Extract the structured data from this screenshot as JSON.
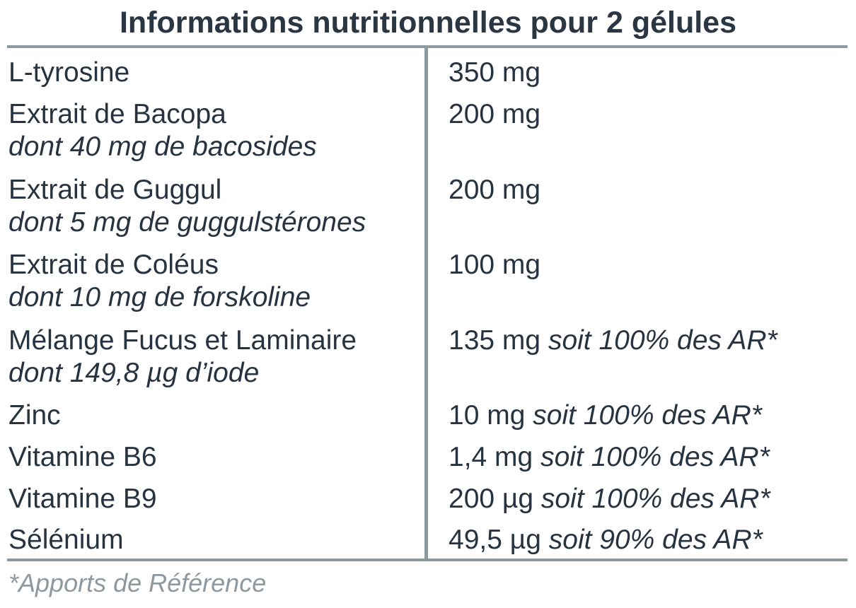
{
  "title": "Informations nutritionnelles pour 2 gélules",
  "rows": [
    {
      "name": "L-tyrosine",
      "sub": "",
      "amount": "350 mg",
      "note": ""
    },
    {
      "name": "Extrait de Bacopa",
      "sub": "dont 40 mg de bacosides",
      "amount": "200 mg",
      "note": ""
    },
    {
      "name": "Extrait de Guggul",
      "sub": "dont 5 mg de guggulstérones",
      "amount": "200 mg",
      "note": ""
    },
    {
      "name": "Extrait de Coléus",
      "sub": "dont 10 mg de forskoline",
      "amount": "100 mg",
      "note": ""
    },
    {
      "name": "Mélange Fucus et Laminaire",
      "sub": "dont 149,8 µg d’iode",
      "amount": "135 mg",
      "note": "soit 100% des AR*"
    },
    {
      "name": "Zinc",
      "sub": "",
      "amount": "10 mg",
      "note": "soit 100% des AR*"
    },
    {
      "name": "Vitamine B6",
      "sub": "",
      "amount": "1,4 mg",
      "note": "soit 100% des AR*"
    },
    {
      "name": "Vitamine B9",
      "sub": "",
      "amount": "200 µg",
      "note": "soit 100% des AR*"
    },
    {
      "name": "Sélénium",
      "sub": "",
      "amount": "49,5 µg",
      "note": "soit 90% des AR*"
    }
  ],
  "footnote": "*Apports de Référence",
  "colors": {
    "text": "#273340",
    "rule": "#8e989f"
  }
}
